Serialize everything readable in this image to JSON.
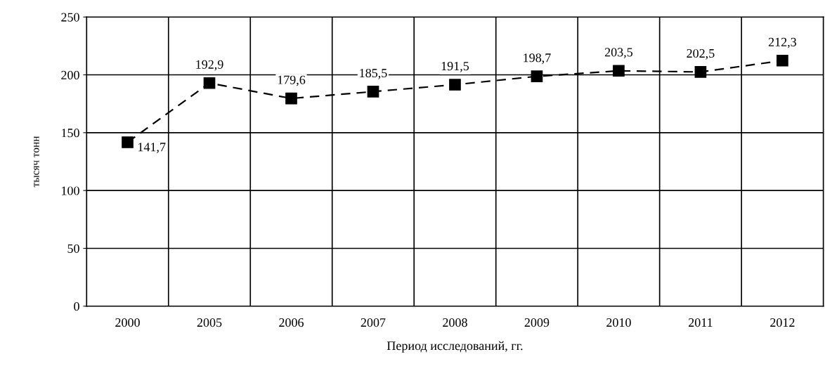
{
  "chart_data": {
    "type": "line",
    "xlabel": "Период исследований, гг.",
    "ylabel": "тысяч тонн",
    "categories": [
      "2000",
      "2005",
      "2006",
      "2007",
      "2008",
      "2009",
      "2010",
      "2011",
      "2012"
    ],
    "series": [
      {
        "color": "#000000",
        "values": [
          141.7,
          192.9,
          179.6,
          185.5,
          191.5,
          198.7,
          203.5,
          202.5,
          212.3
        ],
        "value_labels": [
          "141,7",
          "192,9",
          "179,6",
          "185,5",
          "191,5",
          "198,7",
          "203,5",
          "202,5",
          "212,3"
        ]
      }
    ],
    "ylim": [
      0,
      250
    ],
    "yticks": [
      0,
      50,
      100,
      150,
      200,
      250
    ],
    "grid": true,
    "marker": "square",
    "line_style": "dashed"
  }
}
